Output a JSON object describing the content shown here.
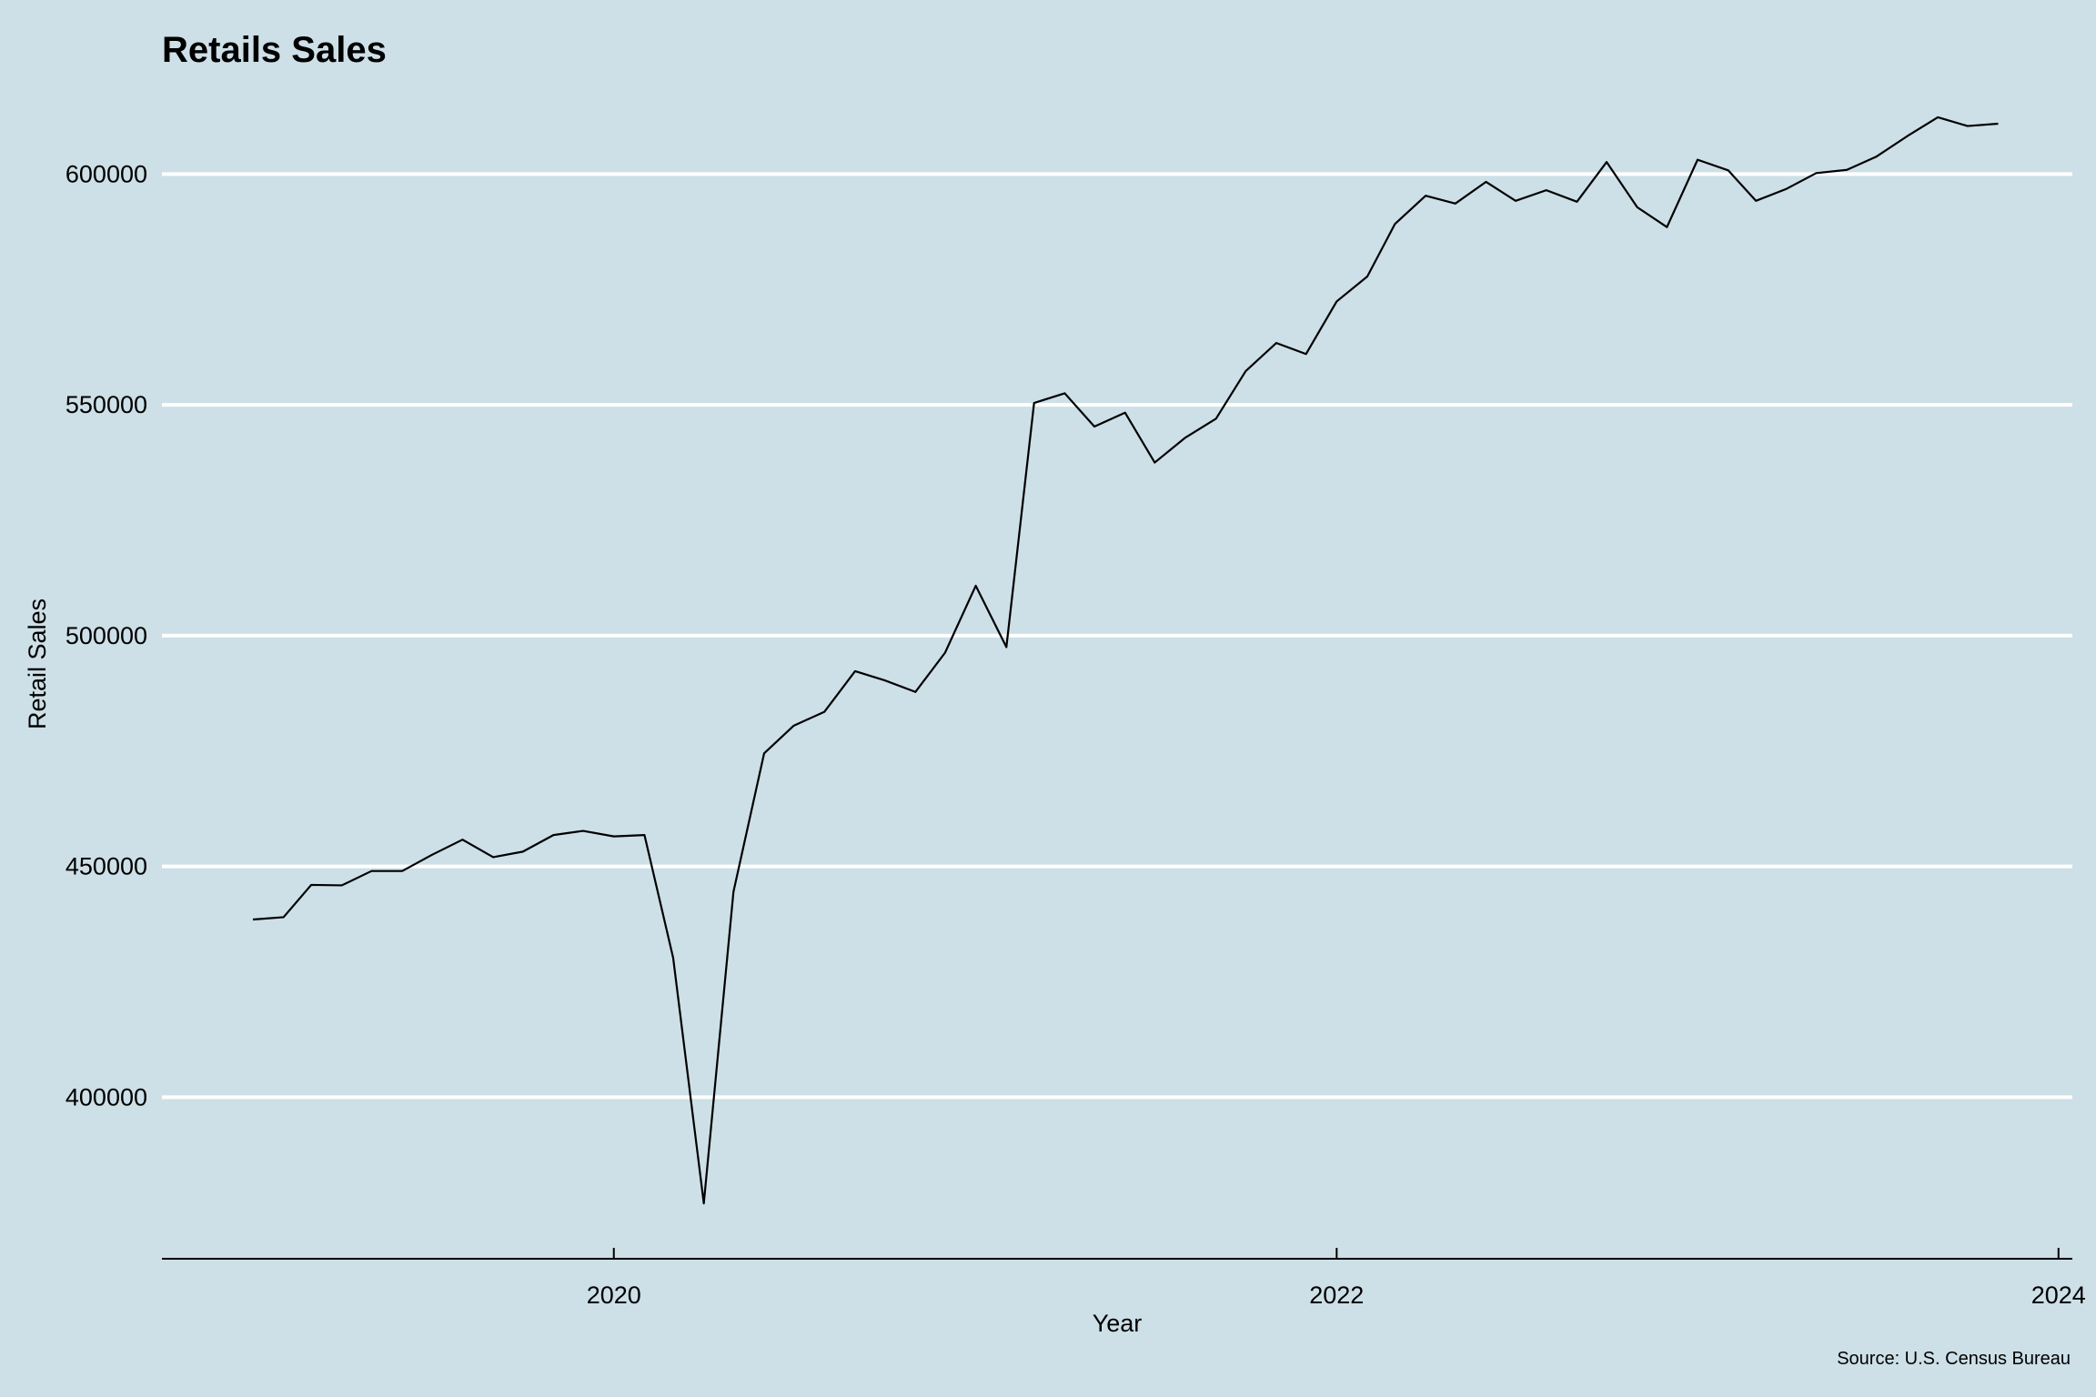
{
  "chart_data": {
    "type": "line",
    "title": "Retails Sales",
    "xlabel": "Year",
    "ylabel": "Retail Sales",
    "caption": "Source: U.S. Census Bureau",
    "ylim": [
      365000,
      618000
    ],
    "xlim": [
      "2018-10-01",
      "2024-01-15"
    ],
    "y_ticks": [
      400000,
      450000,
      500000,
      550000,
      600000
    ],
    "x_ticks": [
      {
        "label": "2020",
        "date": "2020-01-01"
      },
      {
        "label": "2022",
        "date": "2022-01-01"
      },
      {
        "label": "2024",
        "date": "2024-01-01"
      }
    ],
    "grid": "horizontal",
    "legend": "none",
    "line_color": "#000000",
    "series": [
      {
        "x": [
          "2019-01-01",
          "2019-02-01",
          "2019-03-01",
          "2019-04-01",
          "2019-05-01",
          "2019-06-01",
          "2019-07-01",
          "2019-08-01",
          "2019-09-01",
          "2019-10-01",
          "2019-11-01",
          "2019-12-01",
          "2020-01-01",
          "2020-02-01",
          "2020-03-01",
          "2020-04-01",
          "2020-05-01",
          "2020-06-01",
          "2020-07-01",
          "2020-08-01",
          "2020-09-01",
          "2020-10-01",
          "2020-11-01",
          "2020-12-01",
          "2021-01-01",
          "2021-02-01",
          "2021-03-01",
          "2021-04-01",
          "2021-05-01",
          "2021-06-01",
          "2021-07-01",
          "2021-08-01",
          "2021-09-01",
          "2021-10-01",
          "2021-11-01",
          "2021-12-01",
          "2022-01-01",
          "2022-02-01",
          "2022-03-01",
          "2022-04-01",
          "2022-05-01",
          "2022-06-01",
          "2022-07-01",
          "2022-08-01",
          "2022-09-01",
          "2022-10-01",
          "2022-11-01",
          "2022-12-01",
          "2023-01-01",
          "2023-02-01",
          "2023-03-01",
          "2023-04-01",
          "2023-05-01",
          "2023-06-01",
          "2023-07-01",
          "2023-08-01",
          "2023-09-01",
          "2023-10-01",
          "2023-11-01"
        ],
        "values": [
          438500,
          439000,
          446000,
          445900,
          449000,
          449000,
          452500,
          455800,
          452000,
          453200,
          456800,
          457700,
          456500,
          456800,
          430200,
          377000,
          444500,
          474500,
          480500,
          483500,
          492300,
          490300,
          487800,
          496300,
          510800,
          497500,
          550400,
          552500,
          545300,
          548300,
          537500,
          542900,
          547000,
          557300,
          563400,
          561000,
          572400,
          577800,
          589200,
          595300,
          593600,
          598300,
          594200,
          596500,
          594000,
          602600,
          592800,
          588500,
          603100,
          600800,
          594200,
          596800,
          600200,
          600900,
          603800,
          608200,
          612300,
          610400,
          610900
        ]
      }
    ]
  }
}
